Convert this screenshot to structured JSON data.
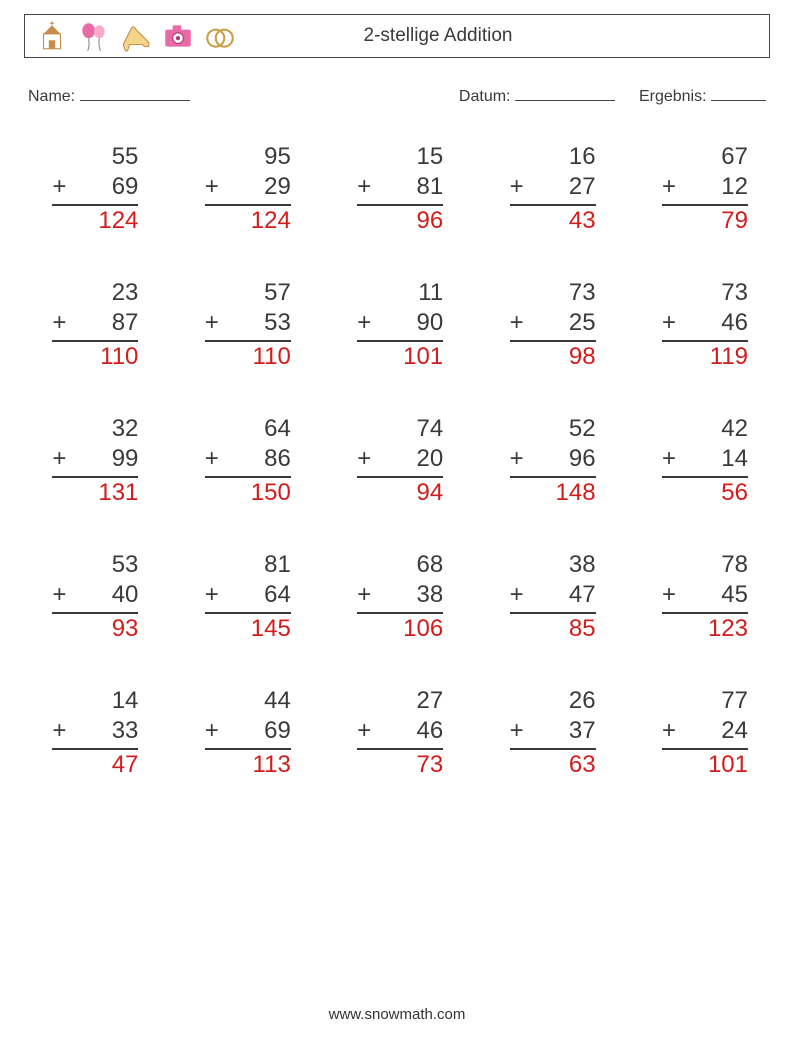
{
  "header": {
    "title": "2-stellige Addition",
    "icons": [
      "church-icon",
      "balloons-icon",
      "shoe-icon",
      "camera-icon",
      "rings-icon"
    ]
  },
  "meta": {
    "name_label": "Name:",
    "date_label": "Datum:",
    "result_label": "Ergebnis:"
  },
  "style": {
    "text_color": "#3a3a3a",
    "answer_color": "#d31c1c",
    "border_color": "#444444",
    "background": "#ffffff",
    "font_size_problem": 24,
    "font_size_meta": 16,
    "font_size_title": 19,
    "columns": 5,
    "rows": 5,
    "column_gap": 60,
    "row_gap": 42
  },
  "problems": [
    {
      "a": 55,
      "b": 69,
      "ans": 124
    },
    {
      "a": 95,
      "b": 29,
      "ans": 124
    },
    {
      "a": 15,
      "b": 81,
      "ans": 96
    },
    {
      "a": 16,
      "b": 27,
      "ans": 43
    },
    {
      "a": 67,
      "b": 12,
      "ans": 79
    },
    {
      "a": 23,
      "b": 87,
      "ans": 110
    },
    {
      "a": 57,
      "b": 53,
      "ans": 110
    },
    {
      "a": 11,
      "b": 90,
      "ans": 101
    },
    {
      "a": 73,
      "b": 25,
      "ans": 98
    },
    {
      "a": 73,
      "b": 46,
      "ans": 119
    },
    {
      "a": 32,
      "b": 99,
      "ans": 131
    },
    {
      "a": 64,
      "b": 86,
      "ans": 150
    },
    {
      "a": 74,
      "b": 20,
      "ans": 94
    },
    {
      "a": 52,
      "b": 96,
      "ans": 148
    },
    {
      "a": 42,
      "b": 14,
      "ans": 56
    },
    {
      "a": 53,
      "b": 40,
      "ans": 93
    },
    {
      "a": 81,
      "b": 64,
      "ans": 145
    },
    {
      "a": 68,
      "b": 38,
      "ans": 106
    },
    {
      "a": 38,
      "b": 47,
      "ans": 85
    },
    {
      "a": 78,
      "b": 45,
      "ans": 123
    },
    {
      "a": 14,
      "b": 33,
      "ans": 47
    },
    {
      "a": 44,
      "b": 69,
      "ans": 113
    },
    {
      "a": 27,
      "b": 46,
      "ans": 73
    },
    {
      "a": 26,
      "b": 37,
      "ans": 63
    },
    {
      "a": 77,
      "b": 24,
      "ans": 101
    }
  ],
  "watermark": "",
  "footer": "www.snowmath.com"
}
